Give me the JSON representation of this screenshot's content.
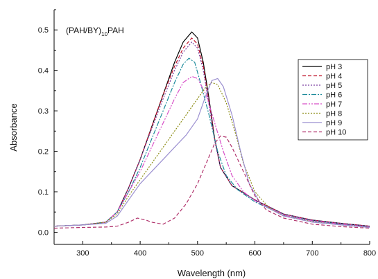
{
  "chart_data": {
    "type": "line",
    "annotation": {
      "main": "(PAH/BY)",
      "subscript": "10",
      "suffix": "PAH"
    },
    "xlabel": "Wavelength (nm)",
    "ylabel": "Absorbance",
    "xlim": [
      250,
      800
    ],
    "ylim": [
      -0.03,
      0.55
    ],
    "xticks": [
      300,
      400,
      500,
      600,
      700,
      800
    ],
    "xtick_labels": [
      "300",
      "400",
      "500",
      "600",
      "700",
      "800"
    ],
    "yticks": [
      0.0,
      0.1,
      0.2,
      0.3,
      0.4,
      0.5
    ],
    "ytick_labels": [
      "0.0",
      "0.1",
      "0.2",
      "0.3",
      "0.4",
      "0.5"
    ],
    "grid": false,
    "legend_position": "right",
    "series": [
      {
        "name": "pH 3",
        "color": "#000000",
        "dash": "solid",
        "points": [
          [
            250,
            0.015
          ],
          [
            300,
            0.018
          ],
          [
            340,
            0.025
          ],
          [
            360,
            0.05
          ],
          [
            380,
            0.11
          ],
          [
            400,
            0.18
          ],
          [
            420,
            0.26
          ],
          [
            440,
            0.34
          ],
          [
            460,
            0.42
          ],
          [
            475,
            0.47
          ],
          [
            490,
            0.495
          ],
          [
            500,
            0.48
          ],
          [
            510,
            0.42
          ],
          [
            520,
            0.33
          ],
          [
            530,
            0.23
          ],
          [
            540,
            0.16
          ],
          [
            560,
            0.115
          ],
          [
            580,
            0.098
          ],
          [
            600,
            0.08
          ],
          [
            650,
            0.045
          ],
          [
            700,
            0.03
          ],
          [
            750,
            0.022
          ],
          [
            800,
            0.015
          ]
        ]
      },
      {
        "name": "pH 4",
        "color": "#c0142c",
        "dash": "5,3",
        "points": [
          [
            250,
            0.015
          ],
          [
            300,
            0.018
          ],
          [
            340,
            0.025
          ],
          [
            360,
            0.05
          ],
          [
            380,
            0.11
          ],
          [
            400,
            0.18
          ],
          [
            420,
            0.26
          ],
          [
            440,
            0.34
          ],
          [
            460,
            0.41
          ],
          [
            475,
            0.455
          ],
          [
            490,
            0.48
          ],
          [
            500,
            0.465
          ],
          [
            510,
            0.41
          ],
          [
            520,
            0.32
          ],
          [
            530,
            0.23
          ],
          [
            540,
            0.16
          ],
          [
            560,
            0.115
          ],
          [
            580,
            0.097
          ],
          [
            600,
            0.08
          ],
          [
            650,
            0.045
          ],
          [
            700,
            0.03
          ],
          [
            750,
            0.022
          ],
          [
            800,
            0.015
          ]
        ]
      },
      {
        "name": "pH 5",
        "color": "#7a3fa0",
        "dash": "2,2",
        "points": [
          [
            250,
            0.015
          ],
          [
            300,
            0.018
          ],
          [
            340,
            0.025
          ],
          [
            360,
            0.05
          ],
          [
            380,
            0.11
          ],
          [
            400,
            0.18
          ],
          [
            420,
            0.255
          ],
          [
            440,
            0.33
          ],
          [
            460,
            0.4
          ],
          [
            475,
            0.445
          ],
          [
            490,
            0.47
          ],
          [
            500,
            0.455
          ],
          [
            510,
            0.4
          ],
          [
            520,
            0.315
          ],
          [
            530,
            0.225
          ],
          [
            540,
            0.16
          ],
          [
            560,
            0.115
          ],
          [
            580,
            0.097
          ],
          [
            600,
            0.08
          ],
          [
            650,
            0.045
          ],
          [
            700,
            0.03
          ],
          [
            750,
            0.022
          ],
          [
            800,
            0.015
          ]
        ]
      },
      {
        "name": "pH 6",
        "color": "#1a8a9a",
        "dash": "7,2,2,2",
        "points": [
          [
            250,
            0.015
          ],
          [
            300,
            0.018
          ],
          [
            340,
            0.025
          ],
          [
            360,
            0.05
          ],
          [
            380,
            0.1
          ],
          [
            400,
            0.16
          ],
          [
            420,
            0.23
          ],
          [
            440,
            0.3
          ],
          [
            460,
            0.37
          ],
          [
            475,
            0.415
          ],
          [
            485,
            0.43
          ],
          [
            495,
            0.42
          ],
          [
            505,
            0.37
          ],
          [
            520,
            0.29
          ],
          [
            535,
            0.2
          ],
          [
            550,
            0.14
          ],
          [
            570,
            0.105
          ],
          [
            600,
            0.075
          ],
          [
            650,
            0.042
          ],
          [
            700,
            0.028
          ],
          [
            750,
            0.02
          ],
          [
            800,
            0.013
          ]
        ]
      },
      {
        "name": "pH 7",
        "color": "#d84fc8",
        "dash": "7,2,2,2,2,2",
        "points": [
          [
            250,
            0.015
          ],
          [
            300,
            0.018
          ],
          [
            340,
            0.025
          ],
          [
            360,
            0.05
          ],
          [
            380,
            0.1
          ],
          [
            400,
            0.15
          ],
          [
            420,
            0.21
          ],
          [
            440,
            0.27
          ],
          [
            460,
            0.33
          ],
          [
            475,
            0.37
          ],
          [
            490,
            0.385
          ],
          [
            500,
            0.38
          ],
          [
            515,
            0.34
          ],
          [
            530,
            0.27
          ],
          [
            545,
            0.2
          ],
          [
            560,
            0.14
          ],
          [
            580,
            0.1
          ],
          [
            600,
            0.078
          ],
          [
            650,
            0.042
          ],
          [
            700,
            0.028
          ],
          [
            750,
            0.02
          ],
          [
            800,
            0.013
          ]
        ]
      },
      {
        "name": "pH 8",
        "color": "#8a8a10",
        "dash": "2,2",
        "points": [
          [
            250,
            0.015
          ],
          [
            300,
            0.018
          ],
          [
            340,
            0.025
          ],
          [
            360,
            0.045
          ],
          [
            380,
            0.09
          ],
          [
            400,
            0.13
          ],
          [
            420,
            0.17
          ],
          [
            440,
            0.21
          ],
          [
            460,
            0.25
          ],
          [
            480,
            0.29
          ],
          [
            500,
            0.33
          ],
          [
            515,
            0.36
          ],
          [
            525,
            0.37
          ],
          [
            535,
            0.365
          ],
          [
            550,
            0.32
          ],
          [
            565,
            0.25
          ],
          [
            580,
            0.17
          ],
          [
            600,
            0.1
          ],
          [
            625,
            0.06
          ],
          [
            650,
            0.04
          ],
          [
            700,
            0.026
          ],
          [
            750,
            0.018
          ],
          [
            800,
            0.012
          ]
        ]
      },
      {
        "name": "pH 9",
        "color": "#9b8fd0",
        "dash": "solid",
        "points": [
          [
            250,
            0.015
          ],
          [
            300,
            0.018
          ],
          [
            340,
            0.022
          ],
          [
            360,
            0.04
          ],
          [
            380,
            0.08
          ],
          [
            400,
            0.12
          ],
          [
            420,
            0.15
          ],
          [
            440,
            0.18
          ],
          [
            460,
            0.21
          ],
          [
            480,
            0.24
          ],
          [
            500,
            0.28
          ],
          [
            515,
            0.34
          ],
          [
            525,
            0.375
          ],
          [
            535,
            0.38
          ],
          [
            545,
            0.36
          ],
          [
            560,
            0.29
          ],
          [
            575,
            0.2
          ],
          [
            590,
            0.12
          ],
          [
            610,
            0.07
          ],
          [
            650,
            0.04
          ],
          [
            700,
            0.025
          ],
          [
            750,
            0.018
          ],
          [
            800,
            0.012
          ]
        ]
      },
      {
        "name": "pH 10",
        "color": "#b0306a",
        "dash": "5,3",
        "points": [
          [
            250,
            0.01
          ],
          [
            300,
            0.012
          ],
          [
            340,
            0.013
          ],
          [
            360,
            0.015
          ],
          [
            380,
            0.025
          ],
          [
            395,
            0.035
          ],
          [
            410,
            0.03
          ],
          [
            420,
            0.025
          ],
          [
            440,
            0.02
          ],
          [
            460,
            0.035
          ],
          [
            480,
            0.07
          ],
          [
            500,
            0.12
          ],
          [
            515,
            0.17
          ],
          [
            530,
            0.22
          ],
          [
            540,
            0.238
          ],
          [
            550,
            0.235
          ],
          [
            560,
            0.21
          ],
          [
            580,
            0.15
          ],
          [
            600,
            0.09
          ],
          [
            620,
            0.055
          ],
          [
            650,
            0.035
          ],
          [
            700,
            0.02
          ],
          [
            750,
            0.014
          ],
          [
            800,
            0.01
          ]
        ]
      }
    ]
  }
}
